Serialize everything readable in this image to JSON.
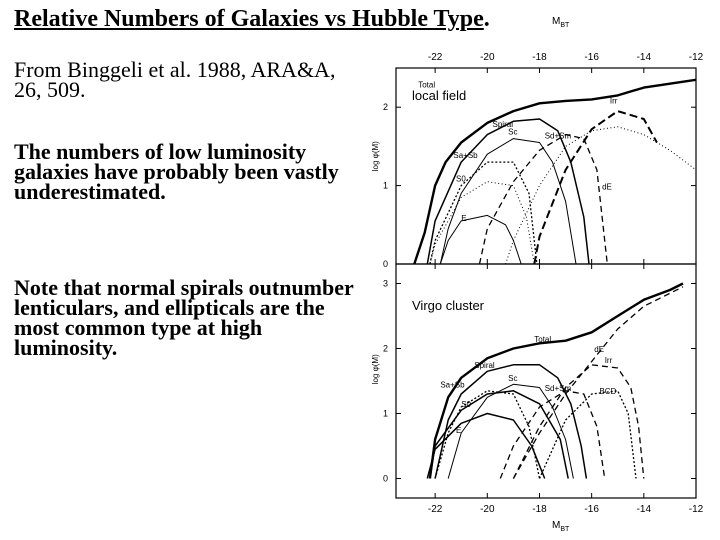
{
  "slide": {
    "title": "Relative Numbers of Galaxies vs Hubble Type",
    "title_period": ".",
    "reference": "From Binggeli et al. 1988, ARA&A, 26, 509.",
    "paragraph_low_luminosity": "The numbers of low luminosity galaxies have probably been vastly underestimated.",
    "paragraph_note": "Note that normal spirals outnumber lenticulars, and ellipticals are the most common type at high luminosity."
  },
  "chart_data": [
    {
      "type": "line",
      "panel_label": "local field",
      "xlabel": "M_BT",
      "ylabel": "log φ(M)",
      "xlim": [
        -23.5,
        -12
      ],
      "ylim": [
        0,
        2.5
      ],
      "x_ticks": [
        -22,
        -20,
        -18,
        -16,
        -14,
        -12
      ],
      "y_ticks": [
        0,
        1,
        2
      ],
      "series": [
        {
          "name": "Total",
          "style": "solid-bold",
          "x": [
            -22.8,
            -22.4,
            -22,
            -21.6,
            -21,
            -20,
            -19,
            -18,
            -17,
            -16,
            -15,
            -14,
            -13,
            -12
          ],
          "y": [
            0.0,
            0.4,
            1.0,
            1.3,
            1.55,
            1.8,
            1.95,
            2.05,
            2.08,
            2.1,
            2.15,
            2.25,
            2.3,
            2.35
          ]
        },
        {
          "name": "Spiral",
          "style": "solid",
          "x": [
            -22.3,
            -22,
            -21,
            -20,
            -19,
            -18,
            -17.3,
            -16.8,
            -16.3,
            -16.1
          ],
          "y": [
            0.0,
            0.55,
            1.3,
            1.65,
            1.82,
            1.85,
            1.7,
            1.3,
            0.6,
            0.0
          ]
        },
        {
          "name": "Sc",
          "style": "solid-thin",
          "x": [
            -21.8,
            -21.5,
            -21,
            -20,
            -19,
            -18,
            -17.5,
            -17,
            -16.6
          ],
          "y": [
            0.0,
            0.45,
            0.9,
            1.4,
            1.6,
            1.55,
            1.3,
            0.8,
            0.0
          ]
        },
        {
          "name": "Sd+Sm",
          "style": "dashed",
          "x": [
            -20.3,
            -20,
            -19,
            -18,
            -17,
            -16.3,
            -15.8,
            -15.4
          ],
          "y": [
            0.0,
            0.45,
            1.05,
            1.45,
            1.65,
            1.6,
            1.2,
            0.0
          ]
        },
        {
          "name": "Irr",
          "style": "dashed-bold",
          "x": [
            -18.2,
            -18,
            -17,
            -16,
            -15,
            -14,
            -13.5
          ],
          "y": [
            0.0,
            0.35,
            1.2,
            1.72,
            1.95,
            1.85,
            1.55
          ]
        },
        {
          "name": "Sa+Sb",
          "style": "dotted",
          "x": [
            -22.2,
            -22,
            -21,
            -20,
            -19,
            -18.4,
            -18.1
          ],
          "y": [
            0.0,
            0.3,
            1.0,
            1.3,
            1.3,
            0.9,
            0.0
          ]
        },
        {
          "name": "S0",
          "style": "dotted-fine",
          "x": [
            -22.2,
            -22,
            -21,
            -20,
            -19,
            -18.5,
            -18.2
          ],
          "y": [
            0.0,
            0.25,
            0.85,
            1.05,
            1.0,
            0.6,
            0.0
          ]
        },
        {
          "name": "E",
          "style": "solid-thin",
          "x": [
            -21.8,
            -21.5,
            -21,
            -20,
            -19.3,
            -19,
            -18.7
          ],
          "y": [
            0.0,
            0.3,
            0.55,
            0.62,
            0.5,
            0.3,
            0.0
          ]
        },
        {
          "name": "dE",
          "style": "dotted-fine",
          "x": [
            -19.3,
            -19,
            -18,
            -17,
            -16,
            -15,
            -14,
            -13,
            -12
          ],
          "y": [
            0.0,
            0.3,
            1.0,
            1.5,
            1.7,
            1.75,
            1.65,
            1.45,
            1.2
          ]
        }
      ]
    },
    {
      "type": "line",
      "panel_label": "Virgo cluster",
      "xlabel": "M_BT",
      "ylabel": "log φ(M)",
      "xlim": [
        -23.5,
        -12
      ],
      "ylim": [
        -0.3,
        3.3
      ],
      "x_ticks": [
        -22,
        -20,
        -18,
        -16,
        -14,
        -12
      ],
      "y_ticks": [
        0,
        1,
        2,
        3
      ],
      "series": [
        {
          "name": "Total",
          "style": "solid-bold",
          "x": [
            -22.2,
            -22,
            -21.5,
            -21,
            -20,
            -19,
            -18,
            -17,
            -16,
            -15,
            -14,
            -13,
            -12.5
          ],
          "y": [
            0.0,
            0.6,
            1.25,
            1.55,
            1.85,
            2.0,
            2.08,
            2.12,
            2.25,
            2.5,
            2.75,
            2.9,
            3.0
          ]
        },
        {
          "name": "dE",
          "style": "dashed",
          "x": [
            -19,
            -18,
            -17,
            -16,
            -15,
            -14,
            -13,
            -12.5
          ],
          "y": [
            0.0,
            0.7,
            1.3,
            1.8,
            2.3,
            2.65,
            2.85,
            2.95
          ]
        },
        {
          "name": "Spiral",
          "style": "solid",
          "x": [
            -22,
            -21.5,
            -21,
            -20,
            -19,
            -18,
            -17.3,
            -16.8,
            -16.4,
            -16.2
          ],
          "y": [
            0.0,
            0.9,
            1.3,
            1.65,
            1.75,
            1.75,
            1.55,
            1.15,
            0.5,
            0.0
          ]
        },
        {
          "name": "Sc",
          "style": "solid-thin",
          "x": [
            -21.5,
            -21,
            -20,
            -19,
            -18,
            -17.5,
            -17,
            -16.7
          ],
          "y": [
            0.0,
            0.7,
            1.25,
            1.45,
            1.4,
            1.1,
            0.6,
            0.0
          ]
        },
        {
          "name": "Sd+Sm",
          "style": "dashed",
          "x": [
            -19.5,
            -19,
            -18,
            -17,
            -16.3,
            -15.8,
            -15.5
          ],
          "y": [
            0.0,
            0.5,
            1.1,
            1.35,
            1.3,
            0.8,
            0.0
          ]
        },
        {
          "name": "Irr",
          "style": "dashed",
          "x": [
            -19,
            -18,
            -17,
            -16,
            -15,
            -14.5,
            -14.2,
            -14
          ],
          "y": [
            0.0,
            0.8,
            1.4,
            1.75,
            1.7,
            1.4,
            0.8,
            0.0
          ]
        },
        {
          "name": "BCD",
          "style": "dotted",
          "x": [
            -18,
            -17,
            -16,
            -15,
            -14.6,
            -14.3
          ],
          "y": [
            0.0,
            0.9,
            1.3,
            1.35,
            1.0,
            0.0
          ]
        },
        {
          "name": "Sa+Sb",
          "style": "dotted",
          "x": [
            -22,
            -21.5,
            -21,
            -20,
            -19,
            -18.4,
            -18
          ],
          "y": [
            0.0,
            0.7,
            1.1,
            1.35,
            1.3,
            0.8,
            0.0
          ]
        },
        {
          "name": "S0",
          "style": "solid",
          "x": [
            -22.2,
            -22,
            -21,
            -20,
            -19,
            -18,
            -17.2,
            -16.9
          ],
          "y": [
            0.0,
            0.5,
            1.05,
            1.3,
            1.35,
            1.15,
            0.6,
            0.0
          ]
        },
        {
          "name": "E",
          "style": "solid",
          "x": [
            -22.3,
            -22,
            -21,
            -20,
            -19,
            -18.3,
            -17.8
          ],
          "y": [
            0.0,
            0.45,
            0.85,
            1.0,
            0.9,
            0.5,
            0.0
          ]
        }
      ]
    }
  ],
  "figure_labels": {
    "mbt_top": "M",
    "mbt_sub": "BT",
    "ylabel": "log φ(M)"
  }
}
